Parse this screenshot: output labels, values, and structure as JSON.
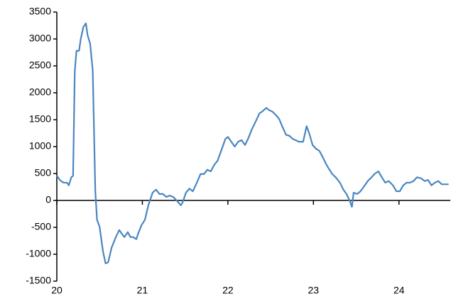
{
  "chart_data": {
    "type": "line",
    "x": [
      20.0,
      20.04,
      20.08,
      20.12,
      20.14,
      20.17,
      20.19,
      20.21,
      20.23,
      20.26,
      20.28,
      20.31,
      20.34,
      20.36,
      20.39,
      20.42,
      20.45,
      20.47,
      20.5,
      20.54,
      20.57,
      20.6,
      20.64,
      20.69,
      20.73,
      20.76,
      20.79,
      20.83,
      20.86,
      20.89,
      20.93,
      20.95,
      20.99,
      21.03,
      21.07,
      21.12,
      21.16,
      21.2,
      21.24,
      21.28,
      21.32,
      21.36,
      21.4,
      21.45,
      21.47,
      21.51,
      21.55,
      21.59,
      21.64,
      21.68,
      21.72,
      21.76,
      21.8,
      21.84,
      21.88,
      21.93,
      21.97,
      22.0,
      22.04,
      22.08,
      22.12,
      22.16,
      22.2,
      22.24,
      22.28,
      22.32,
      22.37,
      22.4,
      22.45,
      22.48,
      22.52,
      22.56,
      22.6,
      22.64,
      22.68,
      22.72,
      22.76,
      22.79,
      22.83,
      22.88,
      22.92,
      22.95,
      22.99,
      23.03,
      23.07,
      23.11,
      23.15,
      23.18,
      23.22,
      23.26,
      23.31,
      23.35,
      23.39,
      23.43,
      23.45,
      23.47,
      23.51,
      23.55,
      23.6,
      23.64,
      23.68,
      23.72,
      23.76,
      23.8,
      23.84,
      23.88,
      23.93,
      23.97,
      24.01,
      24.05,
      24.09,
      24.13,
      24.17,
      24.21,
      24.26,
      24.3,
      24.34,
      24.38,
      24.42,
      24.46,
      24.5,
      24.55,
      24.58
    ],
    "series": [
      {
        "color": "#4a86c1",
        "values": [
          460,
          370,
          330,
          330,
          280,
          430,
          460,
          2400,
          2780,
          2780,
          3000,
          3220,
          3290,
          3070,
          2910,
          2410,
          170,
          -360,
          -490,
          -950,
          -1170,
          -1150,
          -880,
          -680,
          -550,
          -620,
          -680,
          -590,
          -680,
          -680,
          -720,
          -620,
          -460,
          -360,
          -90,
          145,
          200,
          120,
          120,
          65,
          90,
          65,
          0,
          -90,
          -40,
          145,
          220,
          170,
          340,
          490,
          490,
          570,
          540,
          660,
          740,
          960,
          1140,
          1180,
          1090,
          1000,
          1090,
          1120,
          1030,
          1160,
          1320,
          1450,
          1620,
          1650,
          1720,
          1680,
          1650,
          1590,
          1510,
          1360,
          1220,
          1200,
          1140,
          1120,
          1090,
          1090,
          1380,
          1250,
          1030,
          960,
          920,
          800,
          670,
          590,
          490,
          430,
          330,
          200,
          110,
          -30,
          -120,
          145,
          120,
          170,
          280,
          370,
          430,
          500,
          540,
          430,
          330,
          360,
          280,
          170,
          170,
          280,
          330,
          330,
          360,
          430,
          410,
          360,
          380,
          280,
          330,
          360,
          300,
          300,
          300
        ]
      }
    ],
    "xlim": [
      20,
      24.6
    ],
    "xticks": [
      20,
      21,
      22,
      23,
      24
    ],
    "ylim": [
      -1500,
      3500
    ],
    "yticks": [
      -1500,
      -1000,
      -500,
      0,
      500,
      1000,
      1500,
      2000,
      2500,
      3000,
      3500
    ]
  }
}
